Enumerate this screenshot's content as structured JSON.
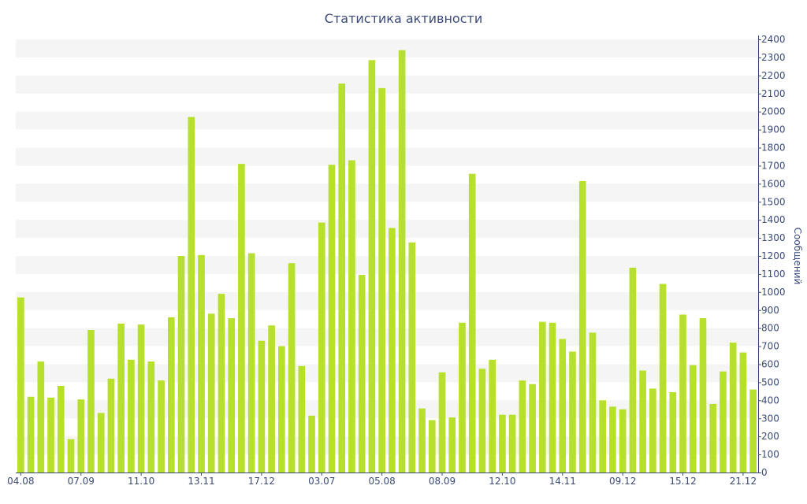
{
  "chart_data": {
    "type": "bar",
    "title": "Статистика активности",
    "xlabel": "",
    "ylabel": "Сообщений",
    "ylim": [
      0,
      2400
    ],
    "y_ticks": [
      0,
      100,
      200,
      300,
      400,
      500,
      600,
      700,
      800,
      900,
      1000,
      1100,
      1200,
      1300,
      1400,
      1500,
      1600,
      1700,
      1800,
      1900,
      2000,
      2100,
      2200,
      2300,
      2400
    ],
    "x_tick_labels": [
      {
        "index": 0,
        "label": "04.08"
      },
      {
        "index": 6,
        "label": "07.09"
      },
      {
        "index": 12,
        "label": "11.10"
      },
      {
        "index": 18,
        "label": "13.11"
      },
      {
        "index": 24,
        "label": "17.12"
      },
      {
        "index": 30,
        "label": "03.07"
      },
      {
        "index": 36,
        "label": "05.08"
      },
      {
        "index": 42,
        "label": "08.09"
      },
      {
        "index": 48,
        "label": "12.10"
      },
      {
        "index": 54,
        "label": "14.11"
      },
      {
        "index": 60,
        "label": "09.12"
      },
      {
        "index": 66,
        "label": "15.12"
      },
      {
        "index": 72,
        "label": "21.12"
      }
    ],
    "values": [
      970,
      420,
      615,
      415,
      480,
      185,
      405,
      790,
      330,
      520,
      825,
      625,
      820,
      615,
      510,
      860,
      1200,
      1970,
      1205,
      880,
      990,
      855,
      1710,
      1215,
      730,
      815,
      700,
      1160,
      590,
      315,
      1385,
      1705,
      2155,
      1730,
      1095,
      2285,
      2130,
      1355,
      2340,
      1275,
      355,
      290,
      555,
      305,
      830,
      1655,
      575,
      625,
      320,
      320,
      510,
      490,
      835,
      830,
      740,
      670,
      1615,
      775,
      400,
      365,
      350,
      1135,
      565,
      465,
      1045,
      445,
      875,
      595,
      855,
      380,
      560,
      720,
      665,
      460
    ],
    "grid": true,
    "y_axis_side": "right",
    "colors": {
      "bar": "#b6e02c",
      "band": "#f5f5f5",
      "axis": "#3b4a7a"
    }
  }
}
